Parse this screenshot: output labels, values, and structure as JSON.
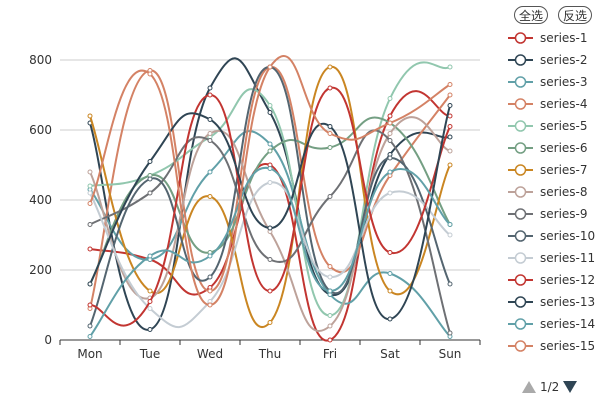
{
  "toolbar": {
    "select_all_label": "全选",
    "inverse_label": "反选"
  },
  "pager": {
    "text": "1/2"
  },
  "chart_data": {
    "type": "line",
    "smooth": true,
    "categories": [
      "Mon",
      "Tue",
      "Wed",
      "Thu",
      "Fri",
      "Sat",
      "Sun"
    ],
    "ylim": [
      0,
      800
    ],
    "yticks": [
      0,
      200,
      400,
      600,
      800
    ],
    "grid": true,
    "legend_position": "right",
    "series": [
      {
        "name": "series-1",
        "color": "#c23531",
        "values": [
          260,
          230,
          150,
          500,
          0,
          640,
          640
        ]
      },
      {
        "name": "series-2",
        "color": "#2f4554",
        "values": [
          620,
          30,
          720,
          650,
          130,
          530,
          580
        ]
      },
      {
        "name": "series-3",
        "color": "#61a0a8",
        "values": [
          430,
          230,
          480,
          560,
          130,
          190,
          10
        ]
      },
      {
        "name": "series-4",
        "color": "#d48265",
        "values": [
          90,
          770,
          140,
          780,
          210,
          470,
          700
        ]
      },
      {
        "name": "series-5",
        "color": "#91c7ae",
        "values": [
          440,
          470,
          580,
          670,
          70,
          690,
          780
        ]
      },
      {
        "name": "series-6",
        "color": "#749f83",
        "values": [
          160,
          470,
          250,
          540,
          550,
          620,
          330
        ]
      },
      {
        "name": "series-7",
        "color": "#ca8622",
        "values": [
          640,
          140,
          410,
          50,
          780,
          140,
          500
        ]
      },
      {
        "name": "series-8",
        "color": "#bda29a",
        "values": [
          480,
          120,
          590,
          310,
          40,
          590,
          540
        ]
      },
      {
        "name": "series-9",
        "color": "#6e7074",
        "values": [
          330,
          420,
          570,
          230,
          410,
          570,
          20
        ]
      },
      {
        "name": "series-10",
        "color": "#546570",
        "values": [
          40,
          460,
          180,
          780,
          140,
          520,
          160
        ]
      },
      {
        "name": "series-11",
        "color": "#c4ccd3",
        "values": [
          420,
          90,
          110,
          450,
          180,
          420,
          300
        ]
      },
      {
        "name": "series-12",
        "color": "#c23531",
        "values": [
          100,
          110,
          700,
          140,
          720,
          250,
          610
        ]
      },
      {
        "name": "series-13",
        "color": "#2f4554",
        "values": [
          160,
          510,
          630,
          320,
          610,
          60,
          670
        ]
      },
      {
        "name": "series-14",
        "color": "#61a0a8",
        "values": [
          10,
          240,
          240,
          490,
          140,
          480,
          330
        ]
      },
      {
        "name": "series-15",
        "color": "#d48265",
        "values": [
          390,
          760,
          100,
          780,
          590,
          620,
          730
        ]
      }
    ]
  }
}
